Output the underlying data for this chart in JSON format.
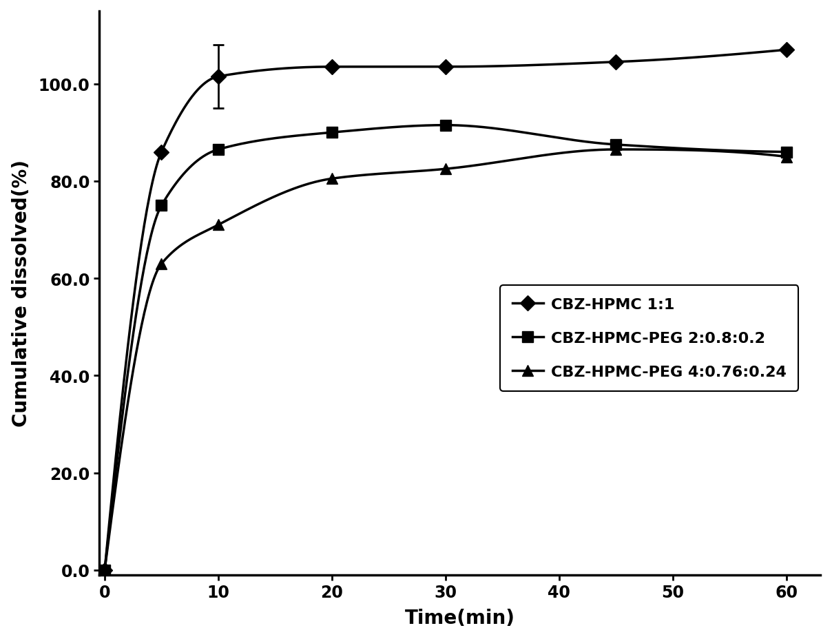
{
  "series": [
    {
      "label": "CBZ-HPMC 1:1",
      "marker": "D",
      "x": [
        0,
        5,
        10,
        20,
        30,
        45,
        60
      ],
      "y": [
        0.0,
        86.0,
        101.5,
        103.5,
        103.5,
        104.5,
        107.0
      ],
      "yerr": [
        0,
        0,
        6.5,
        0,
        0,
        0,
        0
      ],
      "markersize": 11
    },
    {
      "label": "CBZ-HPMC-PEG 2:0.8:0.2",
      "marker": "s",
      "x": [
        0,
        5,
        10,
        20,
        30,
        45,
        60
      ],
      "y": [
        0.0,
        75.0,
        86.5,
        90.0,
        91.5,
        87.5,
        86.0
      ],
      "yerr": [
        0,
        0,
        0,
        0,
        0,
        0,
        0
      ],
      "markersize": 11
    },
    {
      "label": "CBZ-HPMC-PEG 4:0.76:0.24",
      "marker": "^",
      "x": [
        0,
        5,
        10,
        20,
        30,
        45,
        60
      ],
      "y": [
        0.0,
        63.0,
        71.0,
        80.5,
        82.5,
        86.5,
        85.0
      ],
      "yerr": [
        0,
        0,
        0,
        0,
        0,
        0,
        0
      ],
      "markersize": 11
    }
  ],
  "xlabel": "Time(min)",
  "ylabel": "Cumulative dissolved(%)",
  "xlim": [
    -0.5,
    63
  ],
  "ylim": [
    -1.0,
    115.0
  ],
  "yticks": [
    0.0,
    20.0,
    40.0,
    60.0,
    80.0,
    100.0
  ],
  "xticks": [
    0,
    10,
    20,
    30,
    40,
    50,
    60
  ],
  "line_color": "#000000",
  "linewidth": 2.5,
  "axis_fontsize": 20,
  "tick_fontsize": 17,
  "legend_fontsize": 16
}
